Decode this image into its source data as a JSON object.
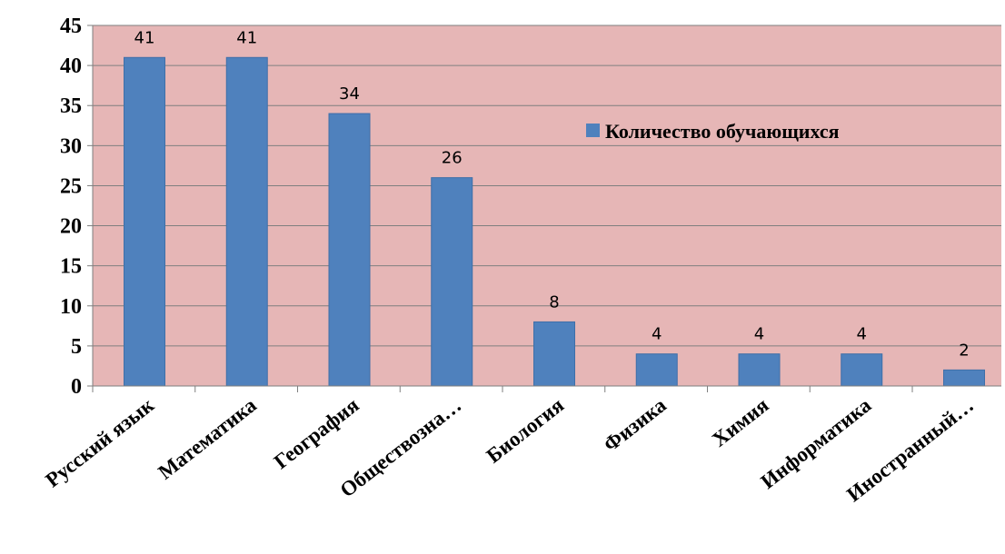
{
  "chart_data": {
    "type": "bar",
    "categories": [
      "Русский язык",
      "Математика",
      "География",
      "Обществозна…",
      "Биология",
      "Физика",
      "Химия",
      "Информатика",
      "Иностранный…"
    ],
    "series": [
      {
        "name": "Количество обучающихся",
        "values": [
          41,
          41,
          34,
          26,
          8,
          4,
          4,
          4,
          2
        ]
      }
    ],
    "data_labels": [
      "41",
      "41",
      "34",
      "26",
      "8",
      "4",
      "4",
      "4",
      "2"
    ],
    "y_ticks": [
      "0",
      "5",
      "10",
      "15",
      "20",
      "25",
      "30",
      "35",
      "40",
      "45"
    ],
    "ylim": [
      0,
      45
    ],
    "grid": true,
    "legend_position": "right",
    "colors": {
      "plot_background": "#e6b6b6",
      "bar": "#4f81bd",
      "bar_edge": "#3f6fa8",
      "gridline": "#7f7f7f",
      "axis": "#7f7f7f"
    }
  }
}
